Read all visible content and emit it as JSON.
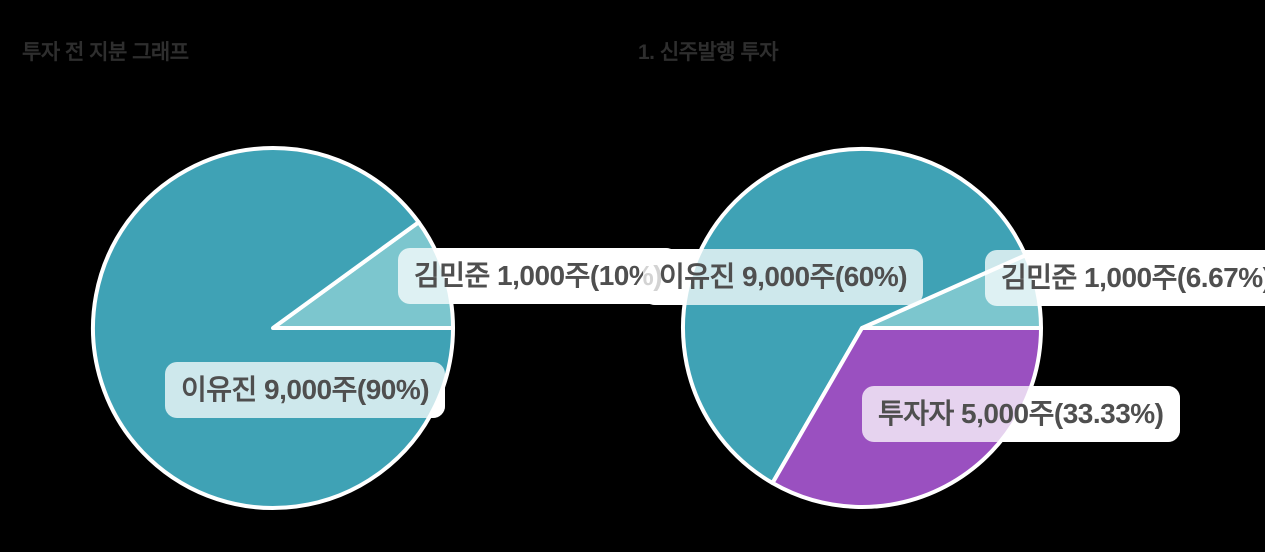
{
  "colors": {
    "background": "#000000",
    "teal": "#3FA2B5",
    "light_teal": "#7CC6CE",
    "purple": "#9A50C0",
    "slice_border": "#FFFFFF",
    "label_background": "#FFFFFF",
    "label_text": "#4F4F4F",
    "title_text": "#2E2E2E"
  },
  "chart_data": [
    {
      "type": "pie",
      "title": "투자 전 지분 그래프",
      "unit": "주",
      "start_angle_deg": 0,
      "direction": "ccw",
      "legend": "none",
      "slices": [
        {
          "name": "김민준",
          "shares": "1,000",
          "percent": 10,
          "label": "김민준 1,000주(10%)",
          "color": "#7CC6CE"
        },
        {
          "name": "이유진",
          "shares": "9,000",
          "percent": 90,
          "label": "이유진 9,000주(90%)",
          "color": "#3FA2B5"
        }
      ]
    },
    {
      "type": "pie",
      "title": "1. 신주발행 투자",
      "unit": "주",
      "start_angle_deg": 0,
      "direction": "ccw",
      "legend": "none",
      "slices": [
        {
          "name": "김민준",
          "shares": "1,000",
          "percent": 6.67,
          "label": "김민준 1,000주(6.67%)",
          "color": "#7CC6CE"
        },
        {
          "name": "이유진",
          "shares": "9,000",
          "percent": 60,
          "label": "이유진 9,000주(60%)",
          "color": "#3FA2B5"
        },
        {
          "name": "투자자",
          "shares": "5,000",
          "percent": 33.33,
          "label": "투자자 5,000주(33.33%)",
          "color": "#9A50C0"
        }
      ]
    }
  ]
}
